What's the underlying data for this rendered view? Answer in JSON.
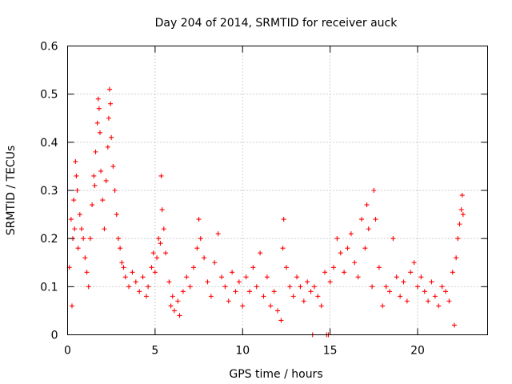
{
  "chart_data": {
    "type": "scatter",
    "title": "Day 204 of 2014, SRMTID for receiver auck",
    "xlabel": "GPS time / hours",
    "ylabel": "SRMTID / TECUs",
    "xlim": [
      0,
      24
    ],
    "ylim": [
      0,
      0.6
    ],
    "xticks": [
      0,
      5,
      10,
      15,
      20
    ],
    "xtick_labels": [
      "0",
      "5",
      "10",
      "15",
      "20"
    ],
    "yticks": [
      0,
      0.1,
      0.2,
      0.3,
      0.4,
      0.5,
      0.6
    ],
    "ytick_labels": [
      "0",
      "0.1",
      "0.2",
      "0.3",
      "0.4",
      "0.5",
      "0.6"
    ],
    "grid": true,
    "marker": "plus",
    "color": "#ff0000",
    "series": [
      {
        "name": "SRMTID",
        "points": [
          [
            0.1,
            0.14
          ],
          [
            0.2,
            0.24
          ],
          [
            0.25,
            0.06
          ],
          [
            0.3,
            0.2
          ],
          [
            0.35,
            0.28
          ],
          [
            0.4,
            0.22
          ],
          [
            0.45,
            0.36
          ],
          [
            0.5,
            0.33
          ],
          [
            0.55,
            0.3
          ],
          [
            0.6,
            0.18
          ],
          [
            0.7,
            0.25
          ],
          [
            0.8,
            0.22
          ],
          [
            0.9,
            0.2
          ],
          [
            1.0,
            0.16
          ],
          [
            1.1,
            0.13
          ],
          [
            1.2,
            0.1
          ],
          [
            1.3,
            0.2
          ],
          [
            1.4,
            0.27
          ],
          [
            1.5,
            0.33
          ],
          [
            1.55,
            0.31
          ],
          [
            1.6,
            0.38
          ],
          [
            1.7,
            0.44
          ],
          [
            1.75,
            0.49
          ],
          [
            1.8,
            0.47
          ],
          [
            1.85,
            0.42
          ],
          [
            1.9,
            0.34
          ],
          [
            2.0,
            0.28
          ],
          [
            2.1,
            0.22
          ],
          [
            2.2,
            0.32
          ],
          [
            2.3,
            0.39
          ],
          [
            2.35,
            0.45
          ],
          [
            2.4,
            0.51
          ],
          [
            2.45,
            0.48
          ],
          [
            2.5,
            0.41
          ],
          [
            2.6,
            0.35
          ],
          [
            2.7,
            0.3
          ],
          [
            2.8,
            0.25
          ],
          [
            2.9,
            0.2
          ],
          [
            3.0,
            0.18
          ],
          [
            3.1,
            0.15
          ],
          [
            3.2,
            0.14
          ],
          [
            3.3,
            0.12
          ],
          [
            3.5,
            0.1
          ],
          [
            3.7,
            0.13
          ],
          [
            3.9,
            0.11
          ],
          [
            4.1,
            0.09
          ],
          [
            4.3,
            0.12
          ],
          [
            4.5,
            0.08
          ],
          [
            4.6,
            0.1
          ],
          [
            4.8,
            0.14
          ],
          [
            4.9,
            0.17
          ],
          [
            5.0,
            0.13
          ],
          [
            5.1,
            0.16
          ],
          [
            5.2,
            0.2
          ],
          [
            5.3,
            0.19
          ],
          [
            5.35,
            0.33
          ],
          [
            5.4,
            0.26
          ],
          [
            5.5,
            0.22
          ],
          [
            5.6,
            0.17
          ],
          [
            5.8,
            0.11
          ],
          [
            5.9,
            0.06
          ],
          [
            6.0,
            0.08
          ],
          [
            6.1,
            0.05
          ],
          [
            6.3,
            0.07
          ],
          [
            6.4,
            0.04
          ],
          [
            6.6,
            0.09
          ],
          [
            6.8,
            0.12
          ],
          [
            7.0,
            0.1
          ],
          [
            7.2,
            0.14
          ],
          [
            7.4,
            0.18
          ],
          [
            7.5,
            0.24
          ],
          [
            7.6,
            0.2
          ],
          [
            7.8,
            0.16
          ],
          [
            8.0,
            0.11
          ],
          [
            8.2,
            0.08
          ],
          [
            8.4,
            0.15
          ],
          [
            8.6,
            0.21
          ],
          [
            8.8,
            0.12
          ],
          [
            9.0,
            0.1
          ],
          [
            9.2,
            0.07
          ],
          [
            9.4,
            0.13
          ],
          [
            9.6,
            0.09
          ],
          [
            9.8,
            0.11
          ],
          [
            10.0,
            0.06
          ],
          [
            10.2,
            0.12
          ],
          [
            10.4,
            0.09
          ],
          [
            10.6,
            0.14
          ],
          [
            10.8,
            0.1
          ],
          [
            11.0,
            0.17
          ],
          [
            11.2,
            0.08
          ],
          [
            11.4,
            0.12
          ],
          [
            11.6,
            0.06
          ],
          [
            11.8,
            0.09
          ],
          [
            12.0,
            0.05
          ],
          [
            12.2,
            0.03
          ],
          [
            12.3,
            0.18
          ],
          [
            12.35,
            0.24
          ],
          [
            12.5,
            0.14
          ],
          [
            12.7,
            0.1
          ],
          [
            12.9,
            0.08
          ],
          [
            13.1,
            0.12
          ],
          [
            13.3,
            0.1
          ],
          [
            13.5,
            0.07
          ],
          [
            13.7,
            0.11
          ],
          [
            13.9,
            0.09
          ],
          [
            14.0,
            0.0
          ],
          [
            14.1,
            0.1
          ],
          [
            14.3,
            0.08
          ],
          [
            14.5,
            0.06
          ],
          [
            14.7,
            0.13
          ],
          [
            14.8,
            0.0
          ],
          [
            14.9,
            0.0
          ],
          [
            15.0,
            0.11
          ],
          [
            15.2,
            0.14
          ],
          [
            15.4,
            0.2
          ],
          [
            15.6,
            0.17
          ],
          [
            15.8,
            0.13
          ],
          [
            16.0,
            0.18
          ],
          [
            16.2,
            0.21
          ],
          [
            16.4,
            0.15
          ],
          [
            16.6,
            0.12
          ],
          [
            16.8,
            0.24
          ],
          [
            17.0,
            0.18
          ],
          [
            17.1,
            0.27
          ],
          [
            17.2,
            0.22
          ],
          [
            17.4,
            0.1
          ],
          [
            17.5,
            0.3
          ],
          [
            17.6,
            0.24
          ],
          [
            17.8,
            0.14
          ],
          [
            18.0,
            0.06
          ],
          [
            18.2,
            0.1
          ],
          [
            18.4,
            0.09
          ],
          [
            18.6,
            0.2
          ],
          [
            18.8,
            0.12
          ],
          [
            19.0,
            0.08
          ],
          [
            19.2,
            0.11
          ],
          [
            19.4,
            0.07
          ],
          [
            19.6,
            0.13
          ],
          [
            19.8,
            0.15
          ],
          [
            20.0,
            0.1
          ],
          [
            20.2,
            0.12
          ],
          [
            20.4,
            0.09
          ],
          [
            20.6,
            0.07
          ],
          [
            20.8,
            0.11
          ],
          [
            21.0,
            0.08
          ],
          [
            21.2,
            0.06
          ],
          [
            21.4,
            0.1
          ],
          [
            21.6,
            0.09
          ],
          [
            21.8,
            0.07
          ],
          [
            22.0,
            0.13
          ],
          [
            22.1,
            0.02
          ],
          [
            22.2,
            0.16
          ],
          [
            22.3,
            0.2
          ],
          [
            22.4,
            0.23
          ],
          [
            22.5,
            0.26
          ],
          [
            22.55,
            0.29
          ],
          [
            22.6,
            0.25
          ]
        ]
      }
    ]
  }
}
